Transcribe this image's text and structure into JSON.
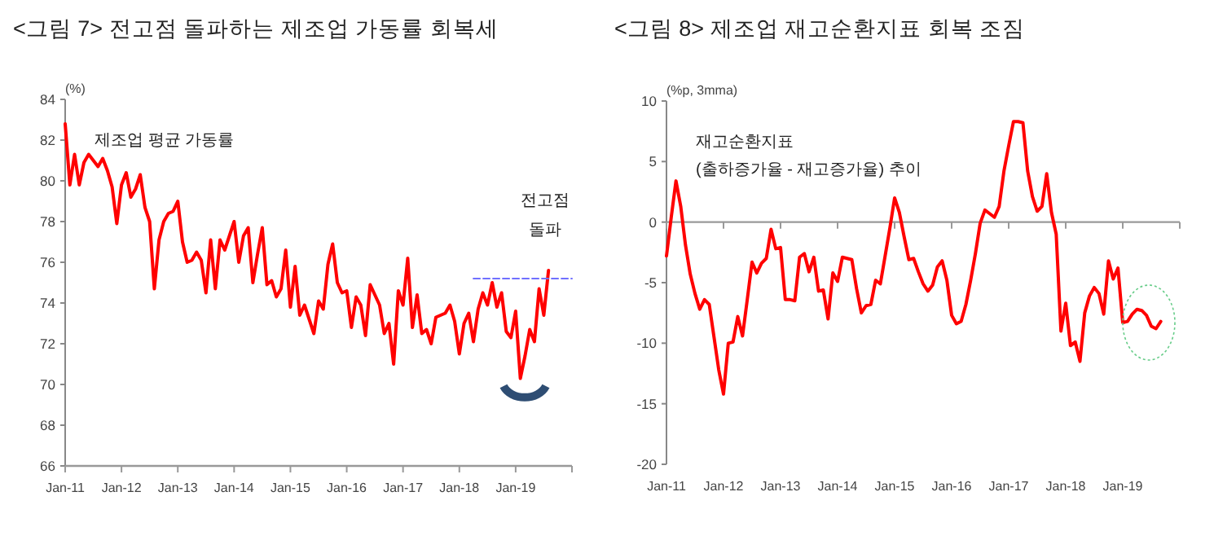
{
  "chart_data": [
    {
      "type": "line",
      "title": "<그림 7> 전고점 돌파하는 제조업 가동률 회복세",
      "ylabel": "(%)",
      "xlim": [
        "2011-01",
        "2020-01"
      ],
      "ylim": [
        66,
        84
      ],
      "yticks": [
        66,
        68,
        70,
        72,
        74,
        76,
        78,
        80,
        82,
        84
      ],
      "xticks": [
        {
          "value": "2011-01",
          "label": "Jan-11"
        },
        {
          "value": "2012-01",
          "label": "Jan-12"
        },
        {
          "value": "2013-01",
          "label": "Jan-13"
        },
        {
          "value": "2014-01",
          "label": "Jan-14"
        },
        {
          "value": "2015-01",
          "label": "Jan-15"
        },
        {
          "value": "2016-01",
          "label": "Jan-16"
        },
        {
          "value": "2017-01",
          "label": "Jan-17"
        },
        {
          "value": "2018-01",
          "label": "Jan-18"
        },
        {
          "value": "2019-01",
          "label": "Jan-19"
        },
        {
          "value": "2020-01",
          "label": null
        }
      ],
      "annotations": [
        {
          "text": "전고점\n돌파",
          "x": "2019-08",
          "y": 75.6
        }
      ],
      "series": [
        {
          "name": "제조업 평균 가동률",
          "color": "#ff0000",
          "x": [
            "2011-01",
            "2011-02",
            "2011-03",
            "2011-04",
            "2011-05",
            "2011-06",
            "2011-07",
            "2011-08",
            "2011-09",
            "2011-10",
            "2011-11",
            "2011-12",
            "2012-01",
            "2012-02",
            "2012-03",
            "2012-04",
            "2012-05",
            "2012-06",
            "2012-07",
            "2012-08",
            "2012-09",
            "2012-10",
            "2012-11",
            "2012-12",
            "2013-01",
            "2013-02",
            "2013-03",
            "2013-04",
            "2013-05",
            "2013-06",
            "2013-07",
            "2013-08",
            "2013-09",
            "2013-10",
            "2013-11",
            "2013-12",
            "2014-01",
            "2014-02",
            "2014-03",
            "2014-04",
            "2014-05",
            "2014-06",
            "2014-07",
            "2014-08",
            "2014-09",
            "2014-10",
            "2014-11",
            "2014-12",
            "2015-01",
            "2015-02",
            "2015-03",
            "2015-04",
            "2015-05",
            "2015-06",
            "2015-07",
            "2015-08",
            "2015-09",
            "2015-10",
            "2015-11",
            "2015-12",
            "2016-01",
            "2016-02",
            "2016-03",
            "2016-04",
            "2016-05",
            "2016-06",
            "2016-07",
            "2016-08",
            "2016-09",
            "2016-10",
            "2016-11",
            "2016-12",
            "2017-01",
            "2017-02",
            "2017-03",
            "2017-04",
            "2017-05",
            "2017-06",
            "2017-07",
            "2017-08",
            "2017-09",
            "2017-10",
            "2017-11",
            "2017-12",
            "2018-01",
            "2018-02",
            "2018-03",
            "2018-04",
            "2018-05",
            "2018-06",
            "2018-07",
            "2018-08",
            "2018-09",
            "2018-10",
            "2018-11",
            "2018-12",
            "2019-01",
            "2019-02",
            "2019-03",
            "2019-04",
            "2019-05",
            "2019-06",
            "2019-07",
            "2019-08"
          ],
          "values": [
            82.8,
            79.8,
            81.3,
            79.8,
            80.9,
            81.3,
            81.0,
            80.7,
            81.1,
            80.5,
            79.7,
            77.9,
            79.8,
            80.4,
            79.2,
            79.6,
            80.3,
            78.7,
            78.0,
            74.7,
            77.1,
            78.0,
            78.4,
            78.5,
            79.0,
            77.0,
            76.0,
            76.1,
            76.5,
            76.1,
            74.5,
            77.1,
            74.7,
            77.1,
            76.6,
            77.3,
            78.0,
            76.0,
            77.3,
            77.7,
            75.0,
            76.4,
            77.7,
            74.9,
            75.1,
            74.3,
            74.7,
            76.6,
            73.8,
            75.8,
            73.4,
            73.9,
            73.2,
            72.5,
            74.1,
            73.7,
            75.9,
            76.9,
            75.0,
            74.5,
            74.6,
            72.8,
            74.3,
            73.9,
            72.4,
            74.9,
            74.4,
            73.9,
            72.5,
            73.0,
            71.0,
            74.6,
            73.9,
            76.2,
            72.8,
            74.4,
            72.5,
            72.7,
            72.0,
            73.3,
            73.4,
            73.5,
            73.9,
            73.1,
            71.5,
            73.0,
            73.5,
            72.1,
            73.7,
            74.5,
            73.9,
            75.0,
            73.8,
            74.5,
            72.6,
            72.3,
            73.6,
            70.3,
            71.4,
            72.7,
            72.1,
            74.7,
            73.4,
            75.6
          ]
        },
        {
          "type": "line",
          "x": [
            "2018-04",
            "2020-01"
          ],
          "values": [
            75.2,
            75.2
          ],
          "color": "#7070ff",
          "line_style": "dashed"
        }
      ]
    },
    {
      "type": "line",
      "title": "<그림 8> 제조업 재고순환지표 회복 조짐",
      "ylabel": "(%p, 3mma)",
      "xlim": [
        "2011-01",
        "2020-01"
      ],
      "ylim": [
        -20,
        10
      ],
      "yticks": [
        -20,
        -15,
        -10,
        -5,
        0,
        5,
        10
      ],
      "xticks": [
        {
          "value": "2011-01",
          "label": "Jan-11"
        },
        {
          "value": "2012-01",
          "label": "Jan-12"
        },
        {
          "value": "2013-01",
          "label": "Jan-13"
        },
        {
          "value": "2014-01",
          "label": "Jan-14"
        },
        {
          "value": "2015-01",
          "label": "Jan-15"
        },
        {
          "value": "2016-01",
          "label": "Jan-16"
        },
        {
          "value": "2017-01",
          "label": "Jan-17"
        },
        {
          "value": "2018-01",
          "label": "Jan-18"
        },
        {
          "value": "2019-01",
          "label": "Jan-19"
        },
        {
          "value": "2020-01",
          "label": null
        }
      ],
      "series": [
        {
          "name": "재고순환지표\n(출하증가율 - 재고증가율) 추이",
          "color": "#ff0000",
          "x": [
            "2011-01",
            "2011-02",
            "2011-03",
            "2011-04",
            "2011-05",
            "2011-06",
            "2011-07",
            "2011-08",
            "2011-09",
            "2011-10",
            "2011-11",
            "2011-12",
            "2012-01",
            "2012-02",
            "2012-03",
            "2012-04",
            "2012-05",
            "2012-06",
            "2012-07",
            "2012-08",
            "2012-09",
            "2012-10",
            "2012-11",
            "2012-12",
            "2013-01",
            "2013-02",
            "2013-03",
            "2013-04",
            "2013-05",
            "2013-06",
            "2013-07",
            "2013-08",
            "2013-09",
            "2013-10",
            "2013-11",
            "2013-12",
            "2014-01",
            "2014-02",
            "2014-03",
            "2014-04",
            "2014-05",
            "2014-06",
            "2014-07",
            "2014-08",
            "2014-09",
            "2014-10",
            "2014-11",
            "2014-12",
            "2015-01",
            "2015-02",
            "2015-03",
            "2015-04",
            "2015-05",
            "2015-06",
            "2015-07",
            "2015-08",
            "2015-09",
            "2015-10",
            "2015-11",
            "2015-12",
            "2016-01",
            "2016-02",
            "2016-03",
            "2016-04",
            "2016-05",
            "2016-06",
            "2016-07",
            "2016-08",
            "2016-09",
            "2016-10",
            "2016-11",
            "2016-12",
            "2017-01",
            "2017-02",
            "2017-03",
            "2017-04",
            "2017-05",
            "2017-06",
            "2017-07",
            "2017-08",
            "2017-09",
            "2017-10",
            "2017-11",
            "2017-12",
            "2018-01",
            "2018-02",
            "2018-03",
            "2018-04",
            "2018-05",
            "2018-06",
            "2018-07",
            "2018-08",
            "2018-09",
            "2018-10",
            "2018-11",
            "2018-12",
            "2019-01",
            "2019-02",
            "2019-03",
            "2019-04",
            "2019-05",
            "2019-06",
            "2019-07",
            "2019-08",
            "2019-09"
          ],
          "values": [
            -2.8,
            0.4,
            3.4,
            1.3,
            -1.9,
            -4.3,
            -5.9,
            -7.2,
            -6.4,
            -6.8,
            -9.5,
            -12.2,
            -14.2,
            -10.0,
            -9.9,
            -7.8,
            -9.4,
            -6.4,
            -3.3,
            -4.2,
            -3.4,
            -3.0,
            -0.6,
            -2.2,
            -2.1,
            -6.4,
            -6.4,
            -6.5,
            -2.9,
            -2.6,
            -4.1,
            -2.9,
            -5.7,
            -5.6,
            -8.0,
            -4.2,
            -4.9,
            -2.9,
            -3.0,
            -3.1,
            -5.5,
            -7.5,
            -6.9,
            -6.8,
            -4.8,
            -5.1,
            -2.8,
            -0.5,
            2.0,
            0.8,
            -1.2,
            -3.1,
            -3.0,
            -4.1,
            -5.1,
            -5.7,
            -5.2,
            -3.7,
            -3.2,
            -4.8,
            -7.7,
            -8.4,
            -8.2,
            -6.8,
            -4.8,
            -2.6,
            -0.1,
            1.0,
            0.7,
            0.4,
            1.3,
            4.2,
            6.3,
            8.3,
            8.3,
            8.2,
            4.2,
            2.1,
            0.9,
            1.3,
            4.0,
            0.8,
            -1.0,
            -9.0,
            -6.7,
            -10.2,
            -9.9,
            -11.5,
            -7.5,
            -6.1,
            -5.4,
            -5.9,
            -7.6,
            -3.2,
            -4.7,
            -3.8,
            -8.3,
            -8.2,
            -7.6,
            -7.2,
            -7.3,
            -7.7,
            -8.6,
            -8.8,
            -8.2
          ]
        }
      ]
    }
  ]
}
